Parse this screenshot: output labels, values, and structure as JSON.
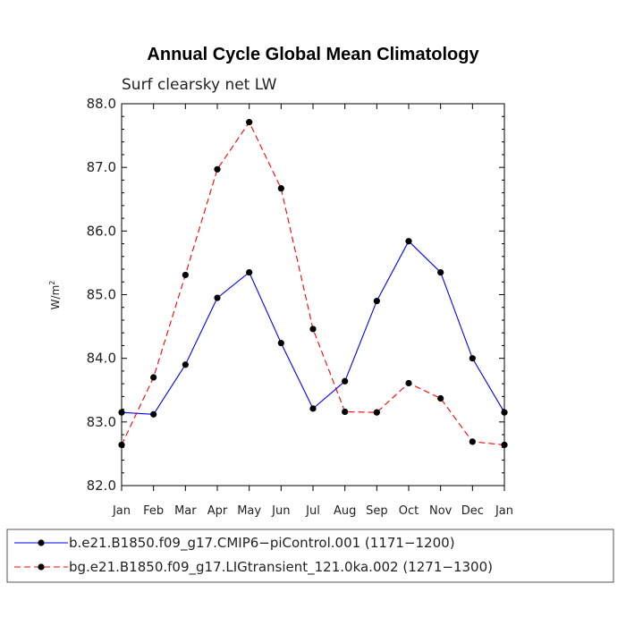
{
  "chart_data": {
    "type": "line",
    "title": "Annual Cycle Global Mean Climatology",
    "subtitle": "Surf clearsky net LW",
    "ylabel_main": "W/m",
    "ylabel_sup": "2",
    "xlabel": "",
    "categories": [
      "Jan",
      "Feb",
      "Mar",
      "Apr",
      "May",
      "Jun",
      "Jul",
      "Aug",
      "Sep",
      "Oct",
      "Nov",
      "Dec",
      "Jan"
    ],
    "ylim": [
      82.0,
      88.0
    ],
    "yticks": [
      "82.0",
      "83.0",
      "84.0",
      "85.0",
      "86.0",
      "87.0",
      "88.0"
    ],
    "grid": false,
    "legend_position": "bottom",
    "series": [
      {
        "name": "b.e21.B1850.f09_g17.CMIP6−piControl.001 (1171−1200)",
        "color": "#0000ff",
        "dash": "solid",
        "values": [
          83.15,
          83.12,
          83.9,
          84.95,
          85.35,
          84.24,
          83.21,
          83.64,
          84.9,
          85.84,
          85.35,
          84.0,
          83.15
        ]
      },
      {
        "name": "bg.e21.B1850.f09_g17.LIGtransient_121.0ka.002 (1271−1300)",
        "color": "#ff0000",
        "dash": "dashed",
        "values": [
          82.64,
          83.7,
          85.31,
          86.97,
          87.71,
          86.67,
          84.46,
          83.16,
          83.15,
          83.61,
          83.37,
          82.69,
          82.64
        ]
      }
    ]
  }
}
